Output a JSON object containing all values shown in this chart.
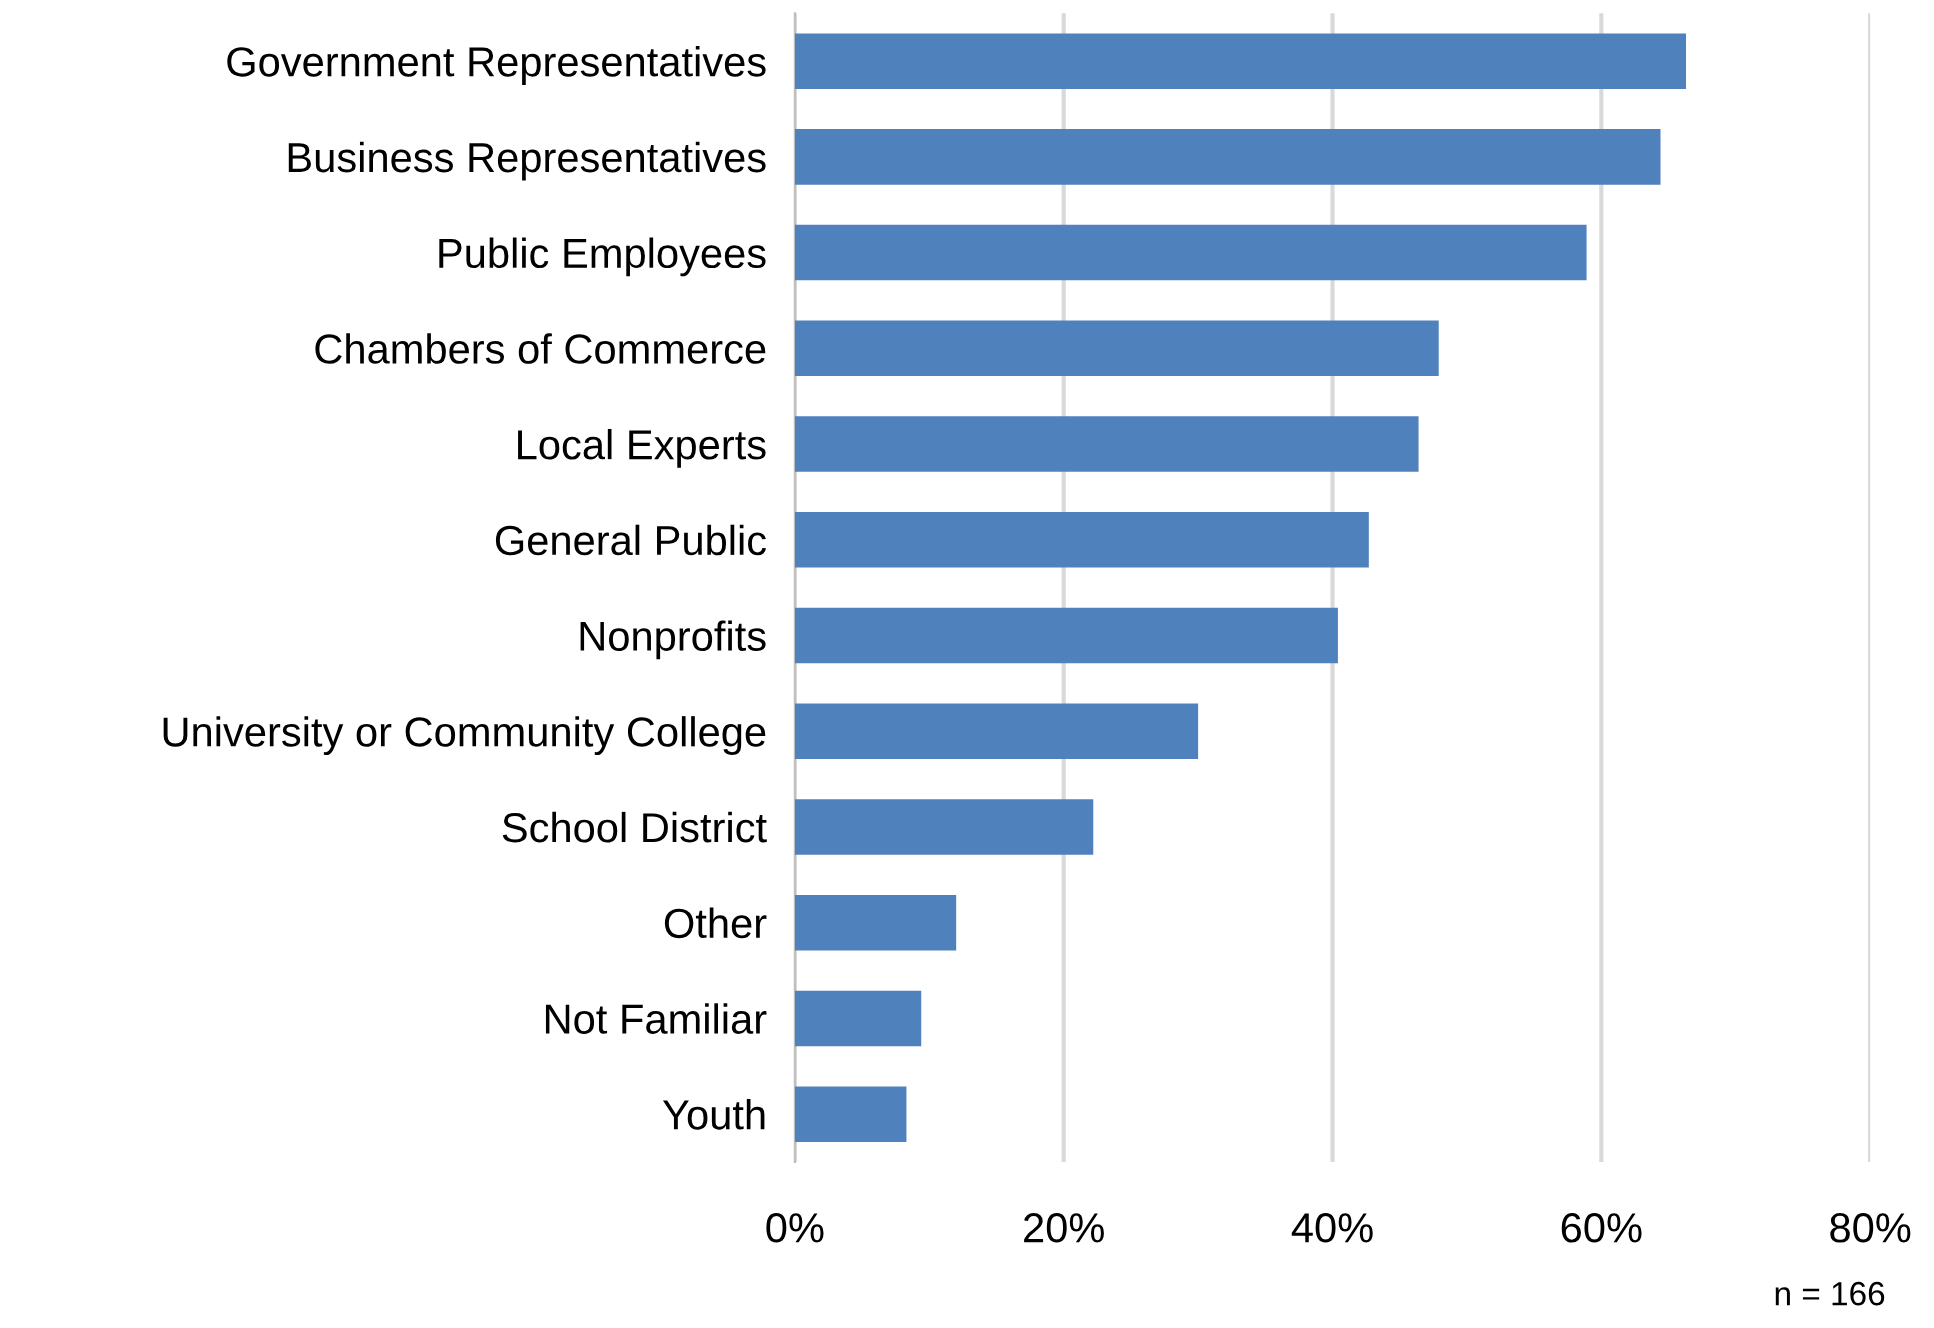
{
  "chart_data": {
    "type": "bar",
    "orientation": "horizontal",
    "categories": [
      "Government Representatives",
      "Business Representatives",
      "Public Employees",
      "Chambers of Commerce",
      "Local Experts",
      "General Public",
      "Nonprofits",
      "University or Community College",
      "School District",
      "Other",
      "Not Familiar",
      "Youth"
    ],
    "values": [
      66.3,
      64.4,
      58.9,
      47.9,
      46.4,
      42.7,
      40.4,
      30.0,
      22.2,
      12.0,
      9.4,
      8.3
    ],
    "color": "#4f81bd",
    "xlim": [
      0,
      80
    ],
    "xticks": [
      {
        "value": 0,
        "label": "0%"
      },
      {
        "value": 20,
        "label": "20%"
      },
      {
        "value": 40,
        "label": "40%"
      },
      {
        "value": 60,
        "label": "60%"
      },
      {
        "value": 80,
        "label": "80%"
      }
    ],
    "grid": "x",
    "annotations": [
      "n = 166"
    ]
  }
}
